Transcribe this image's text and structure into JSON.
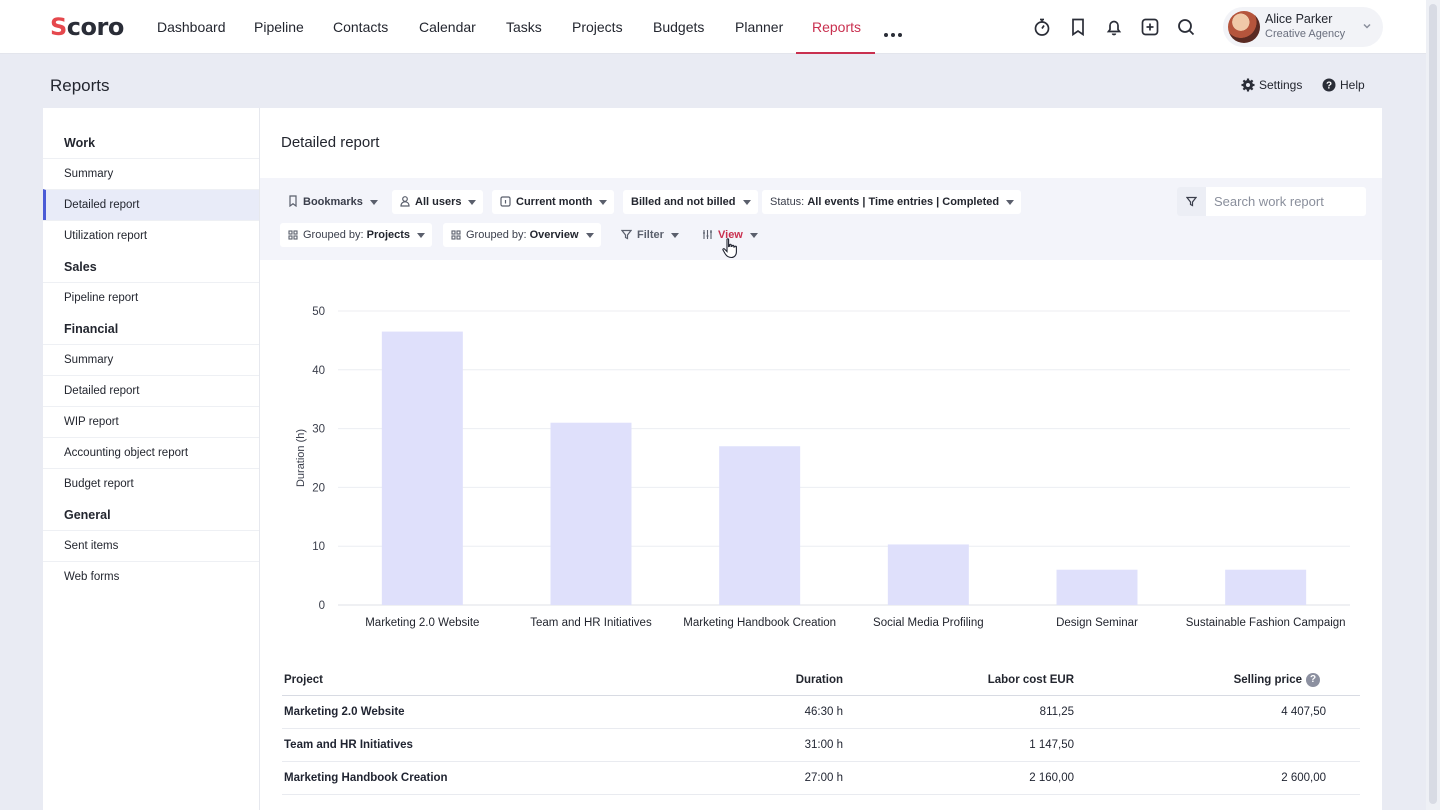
{
  "nav": {
    "logo": "Scoro",
    "items": [
      {
        "label": "Dashboard",
        "active": false
      },
      {
        "label": "Pipeline",
        "active": false
      },
      {
        "label": "Contacts",
        "active": false
      },
      {
        "label": "Calendar",
        "active": false
      },
      {
        "label": "Tasks",
        "active": false
      },
      {
        "label": "Projects",
        "active": false
      },
      {
        "label": "Budgets",
        "active": false
      },
      {
        "label": "Planner",
        "active": false
      },
      {
        "label": "Reports",
        "active": true
      }
    ],
    "icons": [
      "more-dots-icon",
      "timer-icon",
      "bookmark-icon",
      "bell-icon",
      "plus-square-icon",
      "search-icon"
    ],
    "accent_color": "#c9304f"
  },
  "user": {
    "name": "Alice Parker",
    "org": "Creative Agency"
  },
  "page": {
    "title": "Reports",
    "settings_label": "Settings",
    "help_label": "Help"
  },
  "sidebar": {
    "sections": [
      {
        "heading": "Work",
        "items": [
          {
            "label": "Summary",
            "active": false
          },
          {
            "label": "Detailed report",
            "active": true
          },
          {
            "label": "Utilization report",
            "active": false
          }
        ]
      },
      {
        "heading": "Sales",
        "items": [
          {
            "label": "Pipeline report",
            "active": false
          }
        ]
      },
      {
        "heading": "Financial",
        "items": [
          {
            "label": "Summary",
            "active": false
          },
          {
            "label": "Detailed report",
            "active": false
          },
          {
            "label": "WIP report",
            "active": false
          },
          {
            "label": "Accounting object report",
            "active": false
          },
          {
            "label": "Budget report",
            "active": false
          }
        ]
      },
      {
        "heading": "General",
        "items": [
          {
            "label": "Sent items",
            "active": false
          },
          {
            "label": "Web forms",
            "active": false
          }
        ]
      }
    ]
  },
  "report": {
    "title": "Detailed report",
    "filters": {
      "bookmarks": "Bookmarks",
      "users": "All users",
      "period": "Current month",
      "billing": "Billed and not billed",
      "status_prefix": "Status:",
      "status_value": "All events | Time entries | Completed",
      "grouped_prefix": "Grouped by:",
      "grouped_1": "Projects",
      "grouped_2": "Overview",
      "filter": "Filter",
      "view": "View"
    },
    "search": {
      "placeholder": "Search work report",
      "value": ""
    }
  },
  "chart_data": {
    "type": "bar",
    "categories": [
      "Marketing 2.0 Website",
      "Team and HR Initiatives",
      "Marketing Handbook Creation",
      "Social Media Profiling",
      "Design Seminar",
      "Sustainable Fashion Campaign"
    ],
    "values": [
      46.5,
      31,
      27,
      10.3,
      6,
      6
    ],
    "ylabel": "Duration (h)",
    "xlabel": "",
    "ylim": [
      0,
      50
    ],
    "yticks": [
      0,
      10,
      20,
      30,
      40,
      50
    ],
    "grid": true,
    "bar_color": "#dfe0fb"
  },
  "table": {
    "headers": [
      "Project",
      "Duration",
      "Labor cost EUR",
      "Selling price"
    ],
    "rows": [
      [
        "Marketing 2.0 Website",
        "46:30 h",
        "811,25",
        "4 407,50"
      ],
      [
        "Team and HR Initiatives",
        "31:00 h",
        "1 147,50",
        ""
      ],
      [
        "Marketing Handbook Creation",
        "27:00 h",
        "2 160,00",
        "2 600,00"
      ]
    ]
  }
}
